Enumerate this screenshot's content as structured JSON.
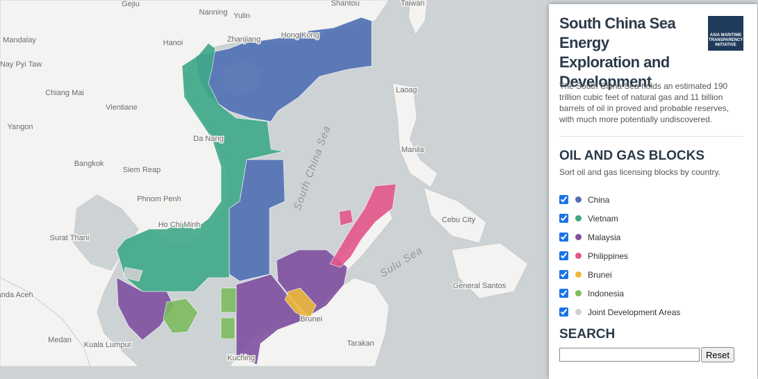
{
  "map": {
    "place_labels": [
      "Gejiu",
      "Nanning",
      "Yulin",
      "Shantou",
      "Taiwan",
      "Mandalay",
      "Hanoi",
      "Zhanjiang",
      "Hong Kong",
      "Nay Pyi Taw",
      "Chiang Mai",
      "Vientiane",
      "Laoag",
      "Yangon",
      "Da Nang",
      "Manila",
      "Bangkok",
      "Siem Reap",
      "Phnom Penh",
      "Ho Chi Minh",
      "Cebu City",
      "Surat Thani",
      "General Santos",
      "Banda Aceh",
      "Brunei",
      "Medan",
      "Kuala Lumpur",
      "Tarakan",
      "Kuching"
    ],
    "sea_labels": [
      "South China Sea",
      "Sulu Sea"
    ]
  },
  "panel": {
    "title": "South China Sea Energy Exploration and Development",
    "logo": "ASIA MARITIME TRANSPARENCY INITIATIVE",
    "description": "The South China Sea holds an estimated 190 trillion cubic feet of natural gas and 11 billion barrels of oil in proved and probable reserves, with much more potentially undiscovered.",
    "section_title": "OIL AND GAS BLOCKS",
    "section_subtitle": "Sort oil and gas licensing blocks by country.",
    "filters": [
      {
        "label": "China",
        "color": "#4f6fb3"
      },
      {
        "label": "Vietnam",
        "color": "#3fa888"
      },
      {
        "label": "Malaysia",
        "color": "#7e50a0"
      },
      {
        "label": "Philippines",
        "color": "#e2578a"
      },
      {
        "label": "Brunei",
        "color": "#ecb83c"
      },
      {
        "label": "Indonesia",
        "color": "#7cbb5f"
      },
      {
        "label": "Joint Development Areas",
        "color": "#cfcfcf"
      }
    ],
    "search_title": "SEARCH",
    "reset": "Reset"
  }
}
